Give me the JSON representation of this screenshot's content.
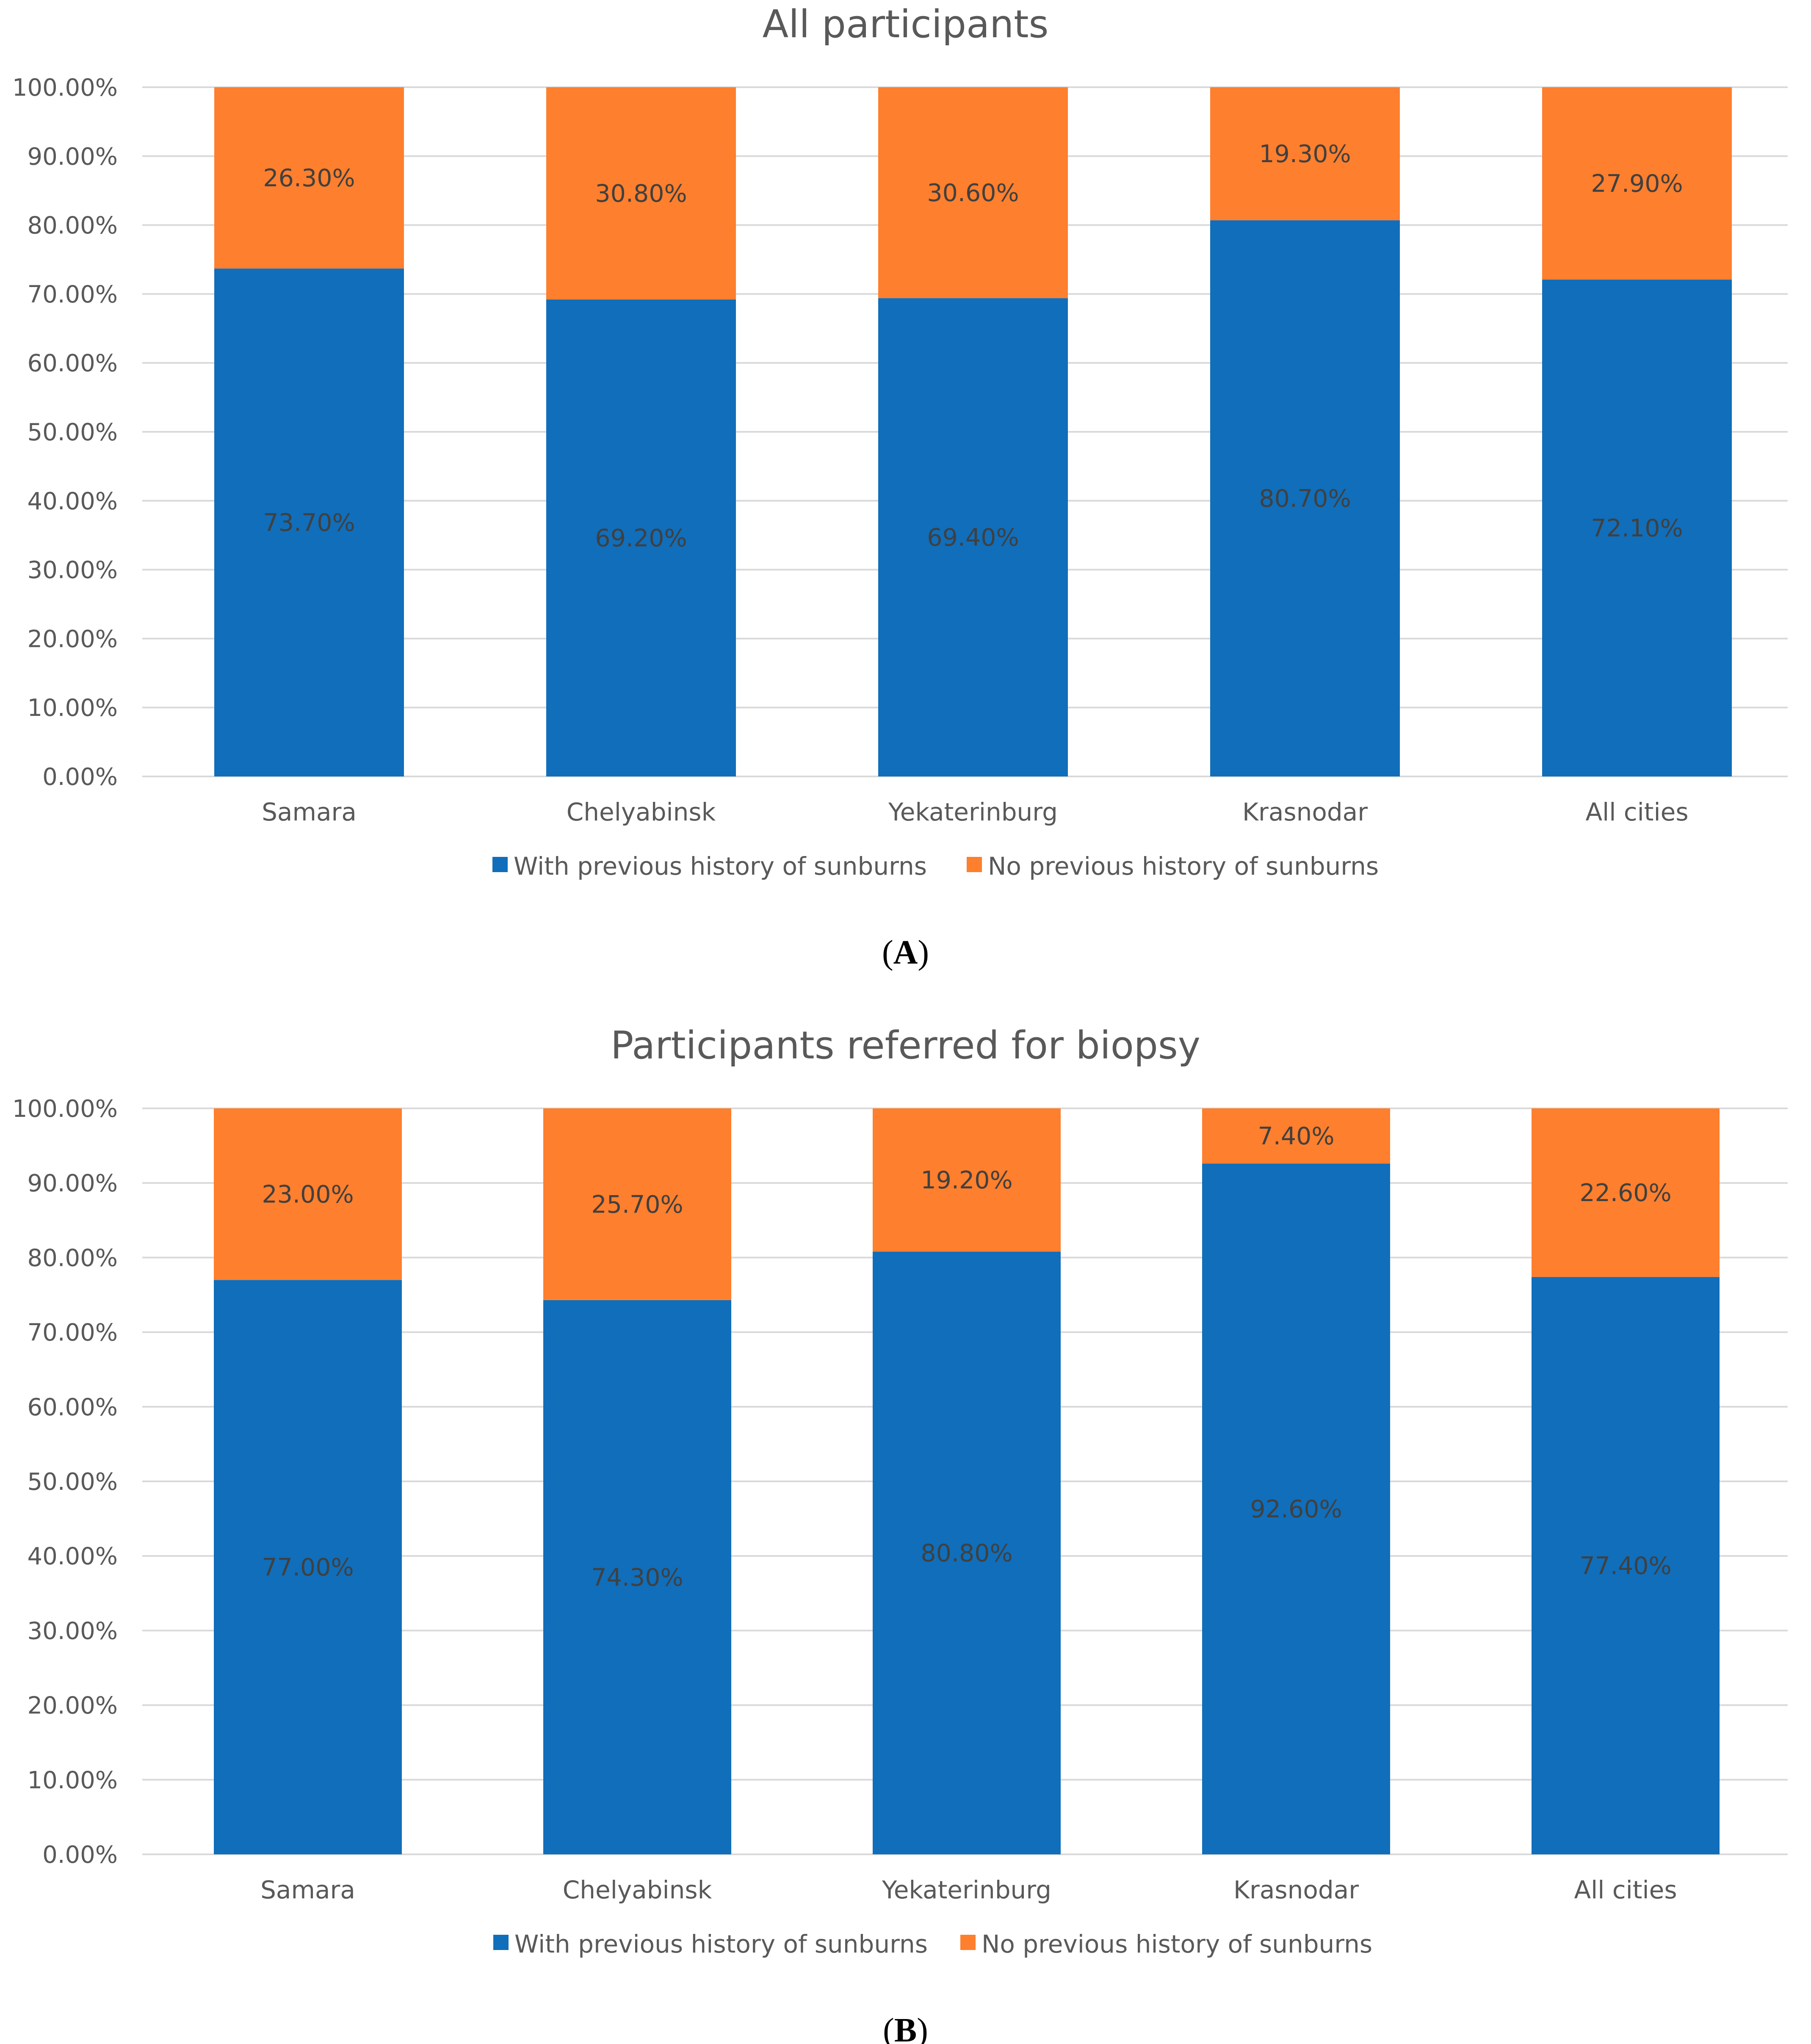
{
  "figure": {
    "panels": [
      {
        "open": "(",
        "letter": "A",
        "close": ")"
      },
      {
        "open": "(",
        "letter": "B",
        "close": ")"
      }
    ]
  },
  "colors": {
    "with_history": "#106eba",
    "no_history": "#fe7f2d",
    "grid": "#d9d9d9",
    "text": "#595959"
  },
  "chart_data": [
    {
      "type": "bar",
      "stacked": true,
      "percent": true,
      "title": "All participants",
      "categories": [
        "Samara",
        "Chelyabinsk",
        "Yekaterinburg",
        "Krasnodar",
        "All cities"
      ],
      "series": [
        {
          "name": "With previous history of sunburns",
          "values": [
            73.7,
            69.2,
            69.4,
            80.7,
            72.1
          ],
          "labels": [
            "73.70%",
            "69.20%",
            "69.40%",
            "80.70%",
            "72.10%"
          ]
        },
        {
          "name": "No previous history of sunburns",
          "values": [
            26.3,
            30.8,
            30.6,
            19.3,
            27.9
          ],
          "labels": [
            "26.30%",
            "30.80%",
            "30.60%",
            "19.30%",
            "27.90%"
          ]
        }
      ],
      "yticks": [
        0,
        10,
        20,
        30,
        40,
        50,
        60,
        70,
        80,
        90,
        100
      ],
      "ytick_labels": [
        "0.00%",
        "10.00%",
        "20.00%",
        "30.00%",
        "40.00%",
        "50.00%",
        "60.00%",
        "70.00%",
        "80.00%",
        "90.00%",
        "100.00%"
      ],
      "ylim": [
        0,
        100
      ],
      "xlabel": "",
      "ylabel": "",
      "grid": true,
      "legend": "bottom"
    },
    {
      "type": "bar",
      "stacked": true,
      "percent": true,
      "title": "Participants referred for biopsy",
      "categories": [
        "Samara",
        "Chelyabinsk",
        "Yekaterinburg",
        "Krasnodar",
        "All cities"
      ],
      "series": [
        {
          "name": "With previous history of sunburns",
          "values": [
            77.0,
            74.3,
            80.8,
            92.6,
            77.4
          ],
          "labels": [
            "77.00%",
            "74.30%",
            "80.80%",
            "92.60%",
            "77.40%"
          ]
        },
        {
          "name": "No previous history of sunburns",
          "values": [
            23.0,
            25.7,
            19.2,
            7.4,
            22.6
          ],
          "labels": [
            "23.00%",
            "25.70%",
            "19.20%",
            "7.40%",
            "22.60%"
          ]
        }
      ],
      "yticks": [
        0,
        10,
        20,
        30,
        40,
        50,
        60,
        70,
        80,
        90,
        100
      ],
      "ytick_labels": [
        "0.00%",
        "10.00%",
        "20.00%",
        "30.00%",
        "40.00%",
        "50.00%",
        "60.00%",
        "70.00%",
        "80.00%",
        "90.00%",
        "100.00%"
      ],
      "ylim": [
        0,
        100
      ],
      "xlabel": "",
      "ylabel": "",
      "grid": true,
      "legend": "bottom"
    }
  ]
}
